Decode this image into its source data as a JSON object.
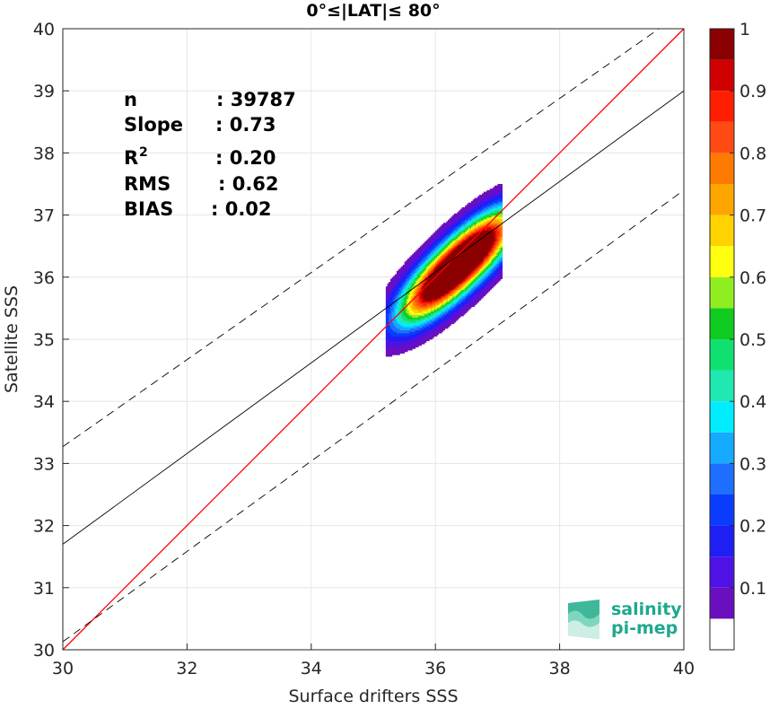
{
  "chart_data": {
    "type": "contour",
    "title": "0°≤|LAT|≤ 80°",
    "xlabel": "Surface drifters SSS",
    "ylabel": "Satellite SSS",
    "xlim": [
      30,
      40
    ],
    "ylim": [
      30,
      40
    ],
    "xticks": [
      "30",
      "32",
      "34",
      "36",
      "38",
      "40"
    ],
    "yticks": [
      "30",
      "31",
      "32",
      "33",
      "34",
      "35",
      "36",
      "37",
      "38",
      "39",
      "40"
    ],
    "grid": true,
    "stats": [
      {
        "label": "n",
        "value": ": 39787"
      },
      {
        "label": "Slope",
        "value": ": 0.73"
      },
      {
        "label": "R",
        "sup": "2",
        "value": ": 0.20"
      },
      {
        "label": "RMS",
        "value": ": 0.62"
      },
      {
        "label": "BIAS",
        "value": ": 0.02"
      }
    ],
    "lines": {
      "identity": {
        "color": "#ff0000",
        "points": [
          [
            30,
            30
          ],
          [
            40,
            40
          ]
        ]
      },
      "fit": {
        "color": "#000000",
        "points": [
          [
            30,
            31.7
          ],
          [
            40,
            39.0
          ]
        ]
      },
      "upper_bound": {
        "style": "dashed",
        "color": "#000000",
        "points": [
          [
            30,
            33.27
          ],
          [
            39.6,
            40
          ]
        ]
      },
      "lower_bound": {
        "style": "dashed",
        "color": "#000000",
        "points": [
          [
            30,
            30.13
          ],
          [
            40,
            37.4
          ]
        ]
      }
    },
    "density_peaks": [
      {
        "x": 36.03,
        "y": 35.88,
        "level": 0.95
      },
      {
        "x": 36.7,
        "y": 36.5,
        "level": 0.95
      }
    ],
    "contour_extent": {
      "x": [
        35.2,
        37.05
      ],
      "y": [
        34.65,
        37.85
      ]
    },
    "colorbar": {
      "ticks": [
        "0.1",
        "0.2",
        "0.3",
        "0.4",
        "0.5",
        "0.6",
        "0.7",
        "0.8",
        "0.9",
        "1"
      ],
      "levels": [
        {
          "from": 0.0,
          "to": 0.05,
          "color": "#ffffff"
        },
        {
          "from": 0.05,
          "to": 0.1,
          "color": "#6a0fbf"
        },
        {
          "from": 0.1,
          "to": 0.15,
          "color": "#4e12e6"
        },
        {
          "from": 0.15,
          "to": 0.2,
          "color": "#1e1ef5"
        },
        {
          "from": 0.2,
          "to": 0.25,
          "color": "#0a3cff"
        },
        {
          "from": 0.25,
          "to": 0.3,
          "color": "#1e6eff"
        },
        {
          "from": 0.3,
          "to": 0.35,
          "color": "#15aaff"
        },
        {
          "from": 0.35,
          "to": 0.4,
          "color": "#00ecff"
        },
        {
          "from": 0.4,
          "to": 0.45,
          "color": "#20e8b0"
        },
        {
          "from": 0.45,
          "to": 0.5,
          "color": "#10e070"
        },
        {
          "from": 0.5,
          "to": 0.55,
          "color": "#10cc20"
        },
        {
          "from": 0.55,
          "to": 0.6,
          "color": "#90ee20"
        },
        {
          "from": 0.6,
          "to": 0.65,
          "color": "#ffff10"
        },
        {
          "from": 0.65,
          "to": 0.7,
          "color": "#ffd200"
        },
        {
          "from": 0.7,
          "to": 0.75,
          "color": "#ffa500"
        },
        {
          "from": 0.75,
          "to": 0.8,
          "color": "#ff7a00"
        },
        {
          "from": 0.8,
          "to": 0.85,
          "color": "#ff4a14"
        },
        {
          "from": 0.85,
          "to": 0.9,
          "color": "#ff1e00"
        },
        {
          "from": 0.9,
          "to": 0.95,
          "color": "#d00000"
        },
        {
          "from": 0.95,
          "to": 1.0,
          "color": "#8b0000"
        }
      ]
    }
  },
  "logo": {
    "line1": "salinity",
    "line2": "pi-mep",
    "color": "#1fa88f"
  }
}
